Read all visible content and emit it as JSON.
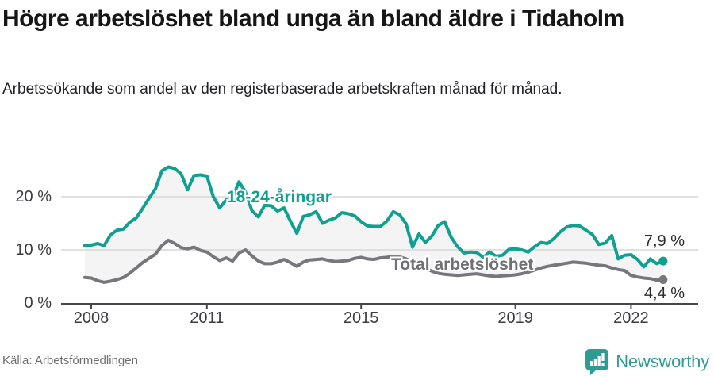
{
  "header": {
    "title": "Högre arbetslöshet bland unga än bland äldre i Tidaholm",
    "subtitle": "Arbetssökande som andel av den registerbaserade arbetskraften månad för månad."
  },
  "footer": {
    "source": "Källa: Arbetsförmedlingen",
    "brand_name": "Newsworthy",
    "brand_icon": "newsworthy-badge-bar-chart-icon"
  },
  "colors": {
    "young_series": "#10a08f",
    "total_series": "#76767b",
    "band_fill": "#f4f4f5",
    "gridline": "#dcdcdc",
    "axis": "#48484c",
    "tick_label": "#3d3d41",
    "value_label": "#2b2b2e",
    "brand_teal": "#2f9c92"
  },
  "chart_data": {
    "type": "line",
    "title": "Arbetslöshet i Tidaholm, månadsvis",
    "x_start": 2007.833,
    "x_step_years": 0.166667,
    "x_ticks": [
      2008,
      2011,
      2015,
      2019,
      2022
    ],
    "x_tick_labels": [
      "2008",
      "2011",
      "2015",
      "2019",
      "2022"
    ],
    "y_ticks": [
      {
        "value": 0,
        "label": "0 %"
      },
      {
        "value": 10,
        "label": "10 %"
      },
      {
        "value": 20,
        "label": "20 %"
      }
    ],
    "ylim": [
      0,
      27
    ],
    "unit": "%",
    "grid": true,
    "series": [
      {
        "name": "18-24-åringar",
        "color": "#10a08f",
        "end_label": "7,9 %",
        "end_value": 7.9,
        "values": [
          10.8,
          10.9,
          11.2,
          10.8,
          12.8,
          13.7,
          13.9,
          15.2,
          16.0,
          17.8,
          19.7,
          21.5,
          24.9,
          25.6,
          25.3,
          24.3,
          21.3,
          24.0,
          24.1,
          23.9,
          20.0,
          17.9,
          19.4,
          19.9,
          22.8,
          20.9,
          17.4,
          16.2,
          18.4,
          18.3,
          17.3,
          17.9,
          15.4,
          13.1,
          16.3,
          16.6,
          17.2,
          15.0,
          15.6,
          16.0,
          17.0,
          16.8,
          16.4,
          15.3,
          14.5,
          14.4,
          14.4,
          15.4,
          17.2,
          16.6,
          14.9,
          10.5,
          13.0,
          11.4,
          12.6,
          14.6,
          15.3,
          12.4,
          10.6,
          9.4,
          9.6,
          9.5,
          8.6,
          9.6,
          8.8,
          9.0,
          10.1,
          10.2,
          10.0,
          9.6,
          10.6,
          11.4,
          11.2,
          12.1,
          13.4,
          14.3,
          14.6,
          14.5,
          13.7,
          12.9,
          11.0,
          11.3,
          12.7,
          8.3,
          9.0,
          9.1,
          8.2,
          6.8,
          8.3,
          7.4,
          7.9
        ]
      },
      {
        "name": "Total arbetslöshet",
        "color": "#76767b",
        "end_label": "4,4 %",
        "end_value": 4.4,
        "values": [
          4.8,
          4.7,
          4.2,
          3.9,
          4.1,
          4.4,
          4.8,
          5.6,
          6.6,
          7.6,
          8.4,
          9.2,
          10.8,
          11.8,
          11.2,
          10.4,
          10.2,
          10.5,
          9.9,
          9.6,
          8.7,
          8.0,
          8.5,
          7.9,
          9.4,
          10.0,
          8.9,
          7.9,
          7.4,
          7.4,
          7.7,
          8.2,
          7.6,
          6.9,
          7.7,
          8.1,
          8.2,
          8.3,
          8.0,
          7.8,
          7.9,
          8.0,
          8.4,
          8.6,
          8.3,
          8.2,
          8.5,
          8.6,
          8.8,
          8.7,
          8.3,
          7.8,
          7.2,
          6.6,
          6.0,
          5.6,
          5.4,
          5.3,
          5.2,
          5.3,
          5.4,
          5.5,
          5.3,
          5.1,
          5.0,
          5.1,
          5.2,
          5.3,
          5.5,
          5.8,
          6.2,
          6.6,
          6.9,
          7.1,
          7.3,
          7.5,
          7.7,
          7.6,
          7.5,
          7.3,
          7.1,
          7.0,
          6.6,
          6.3,
          6.1,
          5.2,
          4.9,
          4.7,
          4.6,
          4.3,
          4.4
        ]
      }
    ],
    "legend_position": "inline-labels"
  }
}
